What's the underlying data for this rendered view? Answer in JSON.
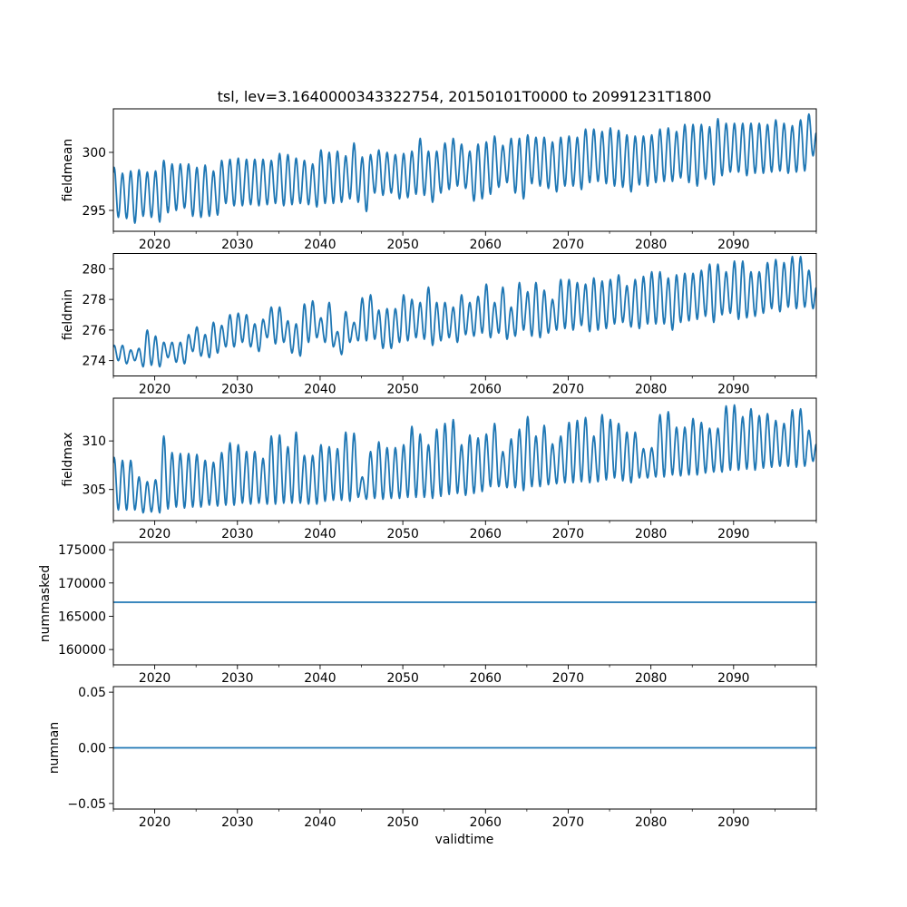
{
  "chart_data": {
    "type": "line",
    "title": "tsl, lev=3.1640000343322754, 20150101T0000 to 20991231T1800",
    "xlabel": "validtime",
    "xlim": [
      2015,
      2100
    ],
    "x_ticks": [
      2020,
      2030,
      2040,
      2050,
      2060,
      2070,
      2080,
      2090
    ],
    "x_tick_labels": [
      "2020",
      "2030",
      "2040",
      "2050",
      "2060",
      "2070",
      "2080",
      "2090"
    ],
    "x_minor_ticks": [
      2015,
      2025,
      2035,
      2045,
      2055,
      2065,
      2075,
      2085,
      2095,
      2100
    ],
    "line_color": "#1f77b4",
    "start_year": 2015,
    "panels": [
      {
        "ylabel": "fieldmean",
        "ylim": [
          293.2,
          303.75
        ],
        "y_ticks": [
          295,
          300
        ],
        "y_tick_labels": [
          "295",
          "300"
        ],
        "annual_peaks": [
          298.7,
          298.2,
          298.4,
          298.5,
          298.3,
          298.4,
          299.3,
          299.0,
          299.0,
          299.0,
          298.7,
          298.9,
          298.4,
          299.3,
          299.4,
          299.5,
          299.4,
          299.4,
          299.4,
          299.3,
          299.9,
          299.8,
          299.5,
          299.3,
          299.0,
          300.2,
          300.0,
          300.1,
          299.7,
          300.8,
          299.6,
          299.8,
          300.2,
          300.0,
          299.8,
          299.9,
          300.1,
          301.2,
          300.1,
          300.1,
          300.8,
          301.2,
          300.7,
          300.1,
          300.7,
          300.9,
          301.4,
          300.6,
          301.2,
          301.2,
          301.5,
          301.3,
          301.3,
          300.9,
          301.3,
          301.4,
          301.3,
          302.0,
          302.0,
          301.8,
          302.1,
          301.9,
          301.5,
          301.4,
          301.4,
          301.5,
          302.0,
          302.1,
          301.8,
          302.4,
          302.4,
          302.4,
          302.2,
          302.9,
          302.5,
          302.5,
          302.5,
          302.5,
          302.5,
          302.4,
          302.8,
          302.5,
          302.3,
          302.8,
          303.3
        ],
        "annual_troughs": [
          294.4,
          294.3,
          293.9,
          294.5,
          294.4,
          294.0,
          294.8,
          295.0,
          295.2,
          294.5,
          294.4,
          294.5,
          294.6,
          295.6,
          295.4,
          295.4,
          295.5,
          295.4,
          295.5,
          295.6,
          295.4,
          295.5,
          295.6,
          295.5,
          295.3,
          295.6,
          295.6,
          295.7,
          296.0,
          295.7,
          294.9,
          296.5,
          296.3,
          296.5,
          296.0,
          296.1,
          296.4,
          296.3,
          295.7,
          296.5,
          296.8,
          297.1,
          296.9,
          295.8,
          296.0,
          296.4,
          297.0,
          297.4,
          296.5,
          296.0,
          297.3,
          297.1,
          296.9,
          296.6,
          297.1,
          297.1,
          296.8,
          297.4,
          297.5,
          297.3,
          297.1,
          297.0,
          296.6,
          297.2,
          297.1,
          297.4,
          297.5,
          297.5,
          297.8,
          297.4,
          297.1,
          297.7,
          297.2,
          298.0,
          298.3,
          298.3,
          298.0,
          298.2,
          298.2,
          298.3,
          298.4,
          298.2,
          298.3,
          298.4,
          299.7
        ]
      },
      {
        "ylabel": "fieldmin",
        "ylim": [
          273.0,
          281.0
        ],
        "y_ticks": [
          274,
          276,
          278,
          280
        ],
        "y_tick_labels": [
          "274",
          "276",
          "278",
          "280"
        ],
        "annual_peaks": [
          275.0,
          275.0,
          274.7,
          274.8,
          276.0,
          275.6,
          275.2,
          275.2,
          275.2,
          275.7,
          276.2,
          275.7,
          276.5,
          276.3,
          277.0,
          277.1,
          277.0,
          276.4,
          276.7,
          277.5,
          277.5,
          276.6,
          276.4,
          277.7,
          277.9,
          276.8,
          277.8,
          275.9,
          277.2,
          276.5,
          278.1,
          278.3,
          277.3,
          277.4,
          277.4,
          278.3,
          278.0,
          277.8,
          278.8,
          277.8,
          277.8,
          277.5,
          278.3,
          277.8,
          278.2,
          279.0,
          277.8,
          278.8,
          277.5,
          279.1,
          278.5,
          279.1,
          278.6,
          278.0,
          279.3,
          279.3,
          279.1,
          279.0,
          279.4,
          279.2,
          279.3,
          279.6,
          278.9,
          279.3,
          279.5,
          279.8,
          279.8,
          279.4,
          279.6,
          279.7,
          279.7,
          279.9,
          280.3,
          280.3,
          279.8,
          280.5,
          280.5,
          279.8,
          279.8,
          280.4,
          280.6,
          280.4,
          280.8,
          280.8,
          279.9
        ],
        "annual_troughs": [
          274.0,
          273.8,
          274.0,
          273.6,
          273.7,
          273.6,
          274.2,
          273.9,
          273.8,
          274.6,
          274.3,
          274.2,
          274.5,
          274.9,
          274.9,
          275.2,
          274.9,
          274.6,
          275.5,
          275.1,
          275.2,
          274.5,
          274.3,
          275.2,
          275.5,
          275.2,
          274.9,
          274.4,
          275.2,
          275.3,
          275.3,
          275.4,
          274.8,
          274.8,
          275.2,
          275.3,
          275.5,
          275.4,
          275.0,
          275.3,
          275.5,
          275.2,
          275.7,
          275.6,
          275.8,
          275.5,
          275.8,
          275.4,
          275.6,
          276.0,
          275.6,
          275.5,
          275.8,
          276.0,
          276.1,
          276.0,
          276.3,
          275.9,
          276.0,
          276.1,
          276.4,
          276.5,
          276.2,
          276.1,
          276.4,
          276.4,
          276.4,
          276.0,
          276.5,
          276.6,
          276.7,
          276.9,
          276.5,
          277.0,
          277.1,
          276.7,
          276.8,
          276.9,
          277.1,
          277.4,
          277.2,
          277.5,
          277.4,
          277.5,
          277.4
        ]
      },
      {
        "ylabel": "fieldmax",
        "ylim": [
          301.8,
          314.4
        ],
        "y_ticks": [
          305,
          310
        ],
        "y_tick_labels": [
          "305",
          "310"
        ],
        "annual_peaks": [
          308.3,
          308.0,
          308.0,
          306.3,
          305.8,
          306.0,
          310.5,
          308.8,
          308.7,
          308.7,
          308.6,
          308.0,
          307.8,
          308.8,
          309.8,
          309.6,
          308.9,
          308.9,
          308.2,
          310.5,
          310.6,
          309.4,
          310.9,
          308.5,
          308.5,
          309.6,
          309.4,
          309.2,
          310.9,
          310.8,
          306.3,
          308.9,
          309.9,
          309.3,
          309.3,
          309.6,
          311.5,
          310.7,
          309.6,
          311.2,
          311.8,
          312.2,
          309.6,
          310.6,
          310.3,
          310.7,
          311.8,
          308.9,
          310.2,
          311.2,
          312.5,
          310.5,
          311.6,
          309.7,
          310.5,
          311.9,
          312.1,
          312.4,
          310.5,
          312.7,
          312.2,
          311.8,
          310.9,
          310.9,
          309.2,
          309.3,
          312.7,
          313.0,
          311.4,
          311.4,
          312.3,
          311.9,
          311.3,
          311.3,
          313.6,
          313.7,
          312.5,
          313.3,
          312.6,
          312.8,
          312.1,
          311.8,
          313.2,
          313.3,
          311.1
        ],
        "annual_troughs": [
          302.9,
          302.9,
          302.9,
          302.6,
          302.7,
          302.6,
          303.0,
          303.2,
          303.1,
          303.2,
          303.2,
          303.4,
          303.3,
          303.4,
          303.4,
          303.6,
          303.5,
          303.6,
          303.5,
          303.5,
          303.6,
          303.6,
          303.6,
          303.5,
          303.5,
          303.8,
          303.9,
          303.9,
          303.8,
          304.2,
          304.0,
          304.1,
          304.0,
          304.1,
          304.1,
          304.2,
          304.2,
          304.2,
          304.1,
          304.3,
          304.5,
          304.6,
          304.4,
          304.6,
          304.8,
          305.3,
          305.3,
          305.2,
          305.2,
          304.9,
          305.3,
          305.3,
          305.5,
          305.6,
          305.7,
          305.7,
          305.8,
          305.7,
          305.8,
          306.0,
          306.2,
          305.9,
          305.7,
          306.2,
          306.2,
          306.3,
          306.3,
          306.5,
          306.4,
          306.5,
          306.5,
          306.7,
          306.8,
          306.8,
          307.0,
          307.0,
          307.1,
          307.0,
          307.2,
          307.3,
          307.4,
          307.4,
          307.3,
          307.4,
          307.9
        ]
      },
      {
        "ylabel": "nummasked",
        "ylim": [
          157700,
          176100
        ],
        "y_ticks": [
          160000,
          165000,
          170000,
          175000
        ],
        "y_tick_labels": [
          "160000",
          "165000",
          "170000",
          "175000"
        ],
        "constant": 167100
      },
      {
        "ylabel": "numnan",
        "ylim": [
          -0.055,
          0.055
        ],
        "y_ticks": [
          -0.05,
          0.0,
          0.05
        ],
        "y_tick_labels": [
          "−0.05",
          "0.00",
          "0.05"
        ],
        "constant": 0.0
      }
    ]
  }
}
